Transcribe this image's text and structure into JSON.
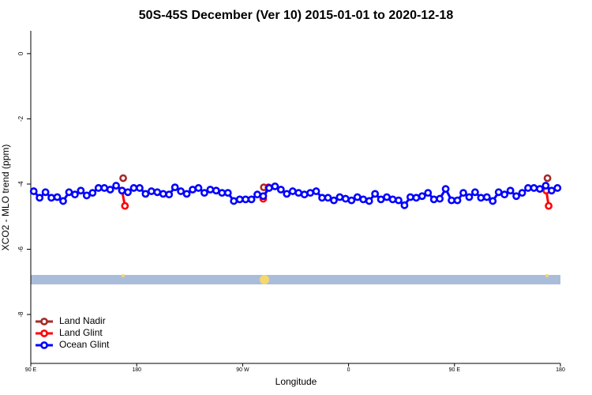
{
  "chart_data": {
    "type": "line",
    "title": "50S-45S December (Ver 10)   2015-01-01 to 2020-12-18",
    "x_label": "Longitude",
    "y_label": "XCO2 - MLO trend (ppm)",
    "xlim": [
      90,
      540
    ],
    "xticks": [
      {
        "value": 90,
        "label": "90 E"
      },
      180,
      {
        "value": 270,
        "label": "90 W"
      },
      {
        "value": 360,
        "label": "0"
      },
      {
        "value": 450,
        "label": "90 E"
      },
      180
    ],
    "ylim": [
      -9.5,
      0.7
    ],
    "yticks": [
      0,
      -2,
      -4,
      -6,
      -8
    ],
    "legend": "bottom-left",
    "series": [
      {
        "name": "Land Nadir",
        "color": "#a52a2a",
        "x": [
          168.5,
          null,
          288,
          null,
          529
        ],
        "values": [
          -3.82,
          null,
          -4.1,
          null,
          -3.82
        ]
      },
      {
        "name": "Land Glint",
        "color": "#ff0000",
        "x": [
          167.5,
          170,
          null,
          287.5,
          292,
          null,
          528,
          530
        ],
        "values": [
          -4.2,
          -4.67,
          null,
          -4.45,
          -4.1,
          null,
          -4.2,
          -4.67
        ]
      },
      {
        "name": "Ocean Glint",
        "color": "#0000ff",
        "x": [
          92.5,
          97.5,
          102.5,
          107.5,
          112.5,
          117.5,
          122.5,
          127.5,
          132.5,
          137.5,
          142.5,
          147.5,
          152.5,
          157.5,
          162.5,
          167.5,
          172.5,
          177.5,
          182.5,
          187.5,
          192.5,
          197.5,
          202.5,
          207.5,
          212.5,
          217.5,
          222.5,
          227.5,
          232.5,
          237.5,
          242.5,
          247.5,
          252.5,
          257.5,
          262.5,
          267.5,
          272.5,
          277.5,
          282.5,
          287.5,
          292.5,
          297.5,
          302.5,
          307.5,
          312.5,
          317.5,
          322.5,
          327.5,
          332.5,
          337.5,
          342.5,
          347.5,
          352.5,
          357.5,
          362.5,
          367.5,
          372.5,
          377.5,
          382.5,
          387.5,
          392.5,
          397.5,
          402.5,
          407.5,
          412.5,
          417.5,
          422.5,
          427.5,
          432.5,
          437.5,
          442.5,
          447.5,
          452.5,
          457.5,
          462.5,
          467.5,
          472.5,
          477.5,
          482.5,
          487.5,
          492.5,
          497.5,
          502.5,
          507.5,
          512.5,
          517.5,
          522.5,
          527.5,
          532.5,
          537.5
        ],
        "values": [
          -4.22,
          -4.42,
          -4.25,
          -4.42,
          -4.4,
          -4.52,
          -4.25,
          -4.32,
          -4.2,
          -4.35,
          -4.27,
          -4.12,
          -4.12,
          -4.17,
          -4.05,
          -4.2,
          -4.25,
          -4.12,
          -4.12,
          -4.3,
          -4.22,
          -4.25,
          -4.3,
          -4.32,
          -4.1,
          -4.22,
          -4.3,
          -4.17,
          -4.12,
          -4.27,
          -4.17,
          -4.2,
          -4.27,
          -4.27,
          -4.52,
          -4.47,
          -4.47,
          -4.47,
          -4.32,
          -4.37,
          -4.12,
          -4.07,
          -4.17,
          -4.3,
          -4.22,
          -4.27,
          -4.32,
          -4.27,
          -4.22,
          -4.42,
          -4.42,
          -4.5,
          -4.4,
          -4.45,
          -4.5,
          -4.4,
          -4.47,
          -4.52,
          -4.3,
          -4.47,
          -4.4,
          -4.47,
          -4.5,
          -4.65,
          -4.4,
          -4.42,
          -4.37,
          -4.27,
          -4.47,
          -4.45,
          -4.15,
          -4.5,
          -4.5,
          -4.27,
          -4.4,
          -4.25,
          -4.42,
          -4.4,
          -4.52,
          -4.25,
          -4.32,
          -4.2,
          -4.37,
          -4.27,
          -4.12,
          -4.12,
          -4.15,
          -4.05,
          -4.2,
          -4.12
        ]
      }
    ]
  }
}
